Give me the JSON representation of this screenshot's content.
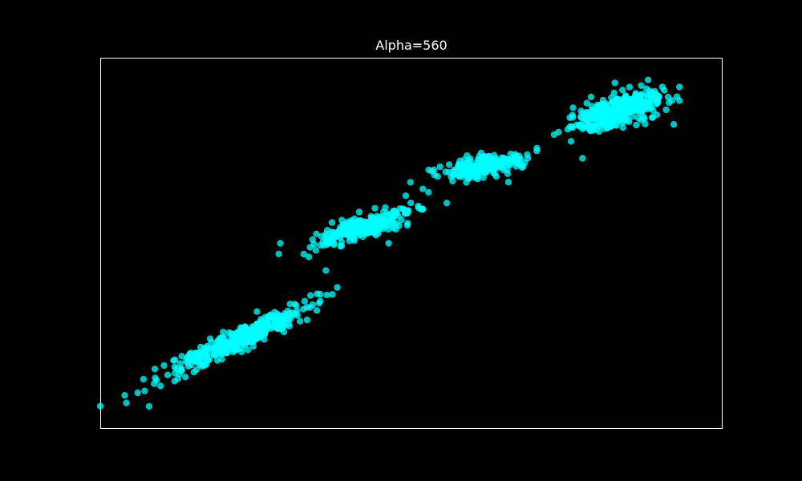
{
  "chart_data": {
    "type": "scatter",
    "title": "Alpha=560",
    "xlabel": "",
    "ylabel": "",
    "xlim": [
      -0.45,
      10.45
    ],
    "ylim": [
      -0.45,
      10.45
    ],
    "grid": false,
    "axes_visible": false,
    "colors": {
      "background": "#000000",
      "frame": "#ffffff",
      "marker": "#00ffff",
      "title": "#ffffff"
    },
    "marker_alpha": 0.75,
    "clusters": [
      {
        "center": [
          2.0,
          2.2
        ],
        "count": 380,
        "spread_along": 0.75,
        "spread_across": 0.13,
        "angle_deg": 40
      },
      {
        "center": [
          4.2,
          5.5
        ],
        "count": 260,
        "spread_along": 0.48,
        "spread_across": 0.14,
        "angle_deg": 30
      },
      {
        "center": [
          6.3,
          7.3
        ],
        "count": 230,
        "spread_along": 0.38,
        "spread_across": 0.14,
        "angle_deg": 20
      },
      {
        "center": [
          8.6,
          8.9
        ],
        "count": 380,
        "spread_along": 0.42,
        "spread_across": 0.19,
        "angle_deg": 32
      }
    ],
    "outliers": [
      [
        0.0,
        0.3
      ],
      [
        0.4,
        0.2
      ],
      [
        0.2,
        0.6
      ],
      [
        0.6,
        0.8
      ],
      [
        0.3,
        1.0
      ],
      [
        0.5,
        1.3
      ],
      [
        3.4,
        3.5
      ],
      [
        3.7,
        3.7
      ],
      [
        3.4,
        3.3
      ],
      [
        2.7,
        5.0
      ],
      [
        3.2,
        4.6
      ],
      [
        3.5,
        4.2
      ],
      [
        4.9,
        6.4
      ],
      [
        5.2,
        6.0
      ],
      [
        5.3,
        6.5
      ],
      [
        4.6,
        5.0
      ],
      [
        5.6,
        7.1
      ],
      [
        5.2,
        6.6
      ],
      [
        6.8,
        7.5
      ],
      [
        7.2,
        7.8
      ],
      [
        6.7,
        6.8
      ],
      [
        7.5,
        8.2
      ],
      [
        7.8,
        8.0
      ],
      [
        8.0,
        7.5
      ],
      [
        9.4,
        9.6
      ],
      [
        9.7,
        9.2
      ],
      [
        9.6,
        8.5
      ],
      [
        9.7,
        9.6
      ]
    ],
    "random_seed": 560
  }
}
